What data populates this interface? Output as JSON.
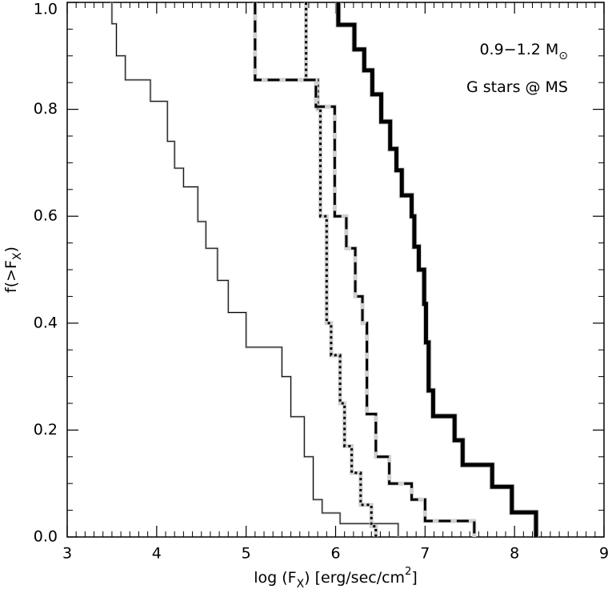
{
  "chart_data": {
    "type": "line",
    "step": true,
    "xlabel": [
      {
        "text": "log (F"
      },
      {
        "text": "X",
        "sub": true
      },
      {
        "text": ") [erg/sec/cm"
      },
      {
        "text": "2",
        "sup": true
      },
      {
        "text": "]"
      }
    ],
    "ylabel": [
      {
        "text": "f(>F"
      },
      {
        "text": "X",
        "sub": true
      },
      {
        "text": ")"
      }
    ],
    "annotations": [
      [
        {
          "text": "0.9−1.2 M"
        },
        {
          "text": "⊙",
          "sub": true
        }
      ],
      [
        {
          "text": "G stars @ MS"
        }
      ]
    ],
    "xlim": [
      3,
      9
    ],
    "ylim": [
      0,
      1
    ],
    "xticks": [
      3,
      4,
      5,
      6,
      7,
      8,
      9
    ],
    "yticks": [
      {
        "value": 0,
        "label": "0.0"
      },
      0.2,
      0.4,
      0.6,
      0.8,
      {
        "value": 1,
        "label": "1.0"
      }
    ],
    "series": [
      {
        "color": "#000000",
        "line_style": "solid",
        "line_width": 1,
        "x": [
          3.5,
          3.5,
          3.55,
          3.55,
          3.65,
          3.65,
          3.93,
          3.93,
          4.12,
          4.12,
          4.2,
          4.2,
          4.3,
          4.3,
          4.46,
          4.46,
          4.55,
          4.55,
          4.68,
          4.68,
          4.8,
          4.8,
          5.0,
          5.0,
          5.4,
          5.4,
          5.5,
          5.5,
          5.65,
          5.65,
          5.75,
          5.75,
          5.85,
          5.85,
          6.05,
          6.05,
          6.7,
          6.7
        ],
        "values": [
          1,
          0.96,
          0.96,
          0.9,
          0.9,
          0.855,
          0.855,
          0.815,
          0.815,
          0.74,
          0.74,
          0.69,
          0.69,
          0.655,
          0.655,
          0.59,
          0.59,
          0.54,
          0.54,
          0.48,
          0.48,
          0.42,
          0.42,
          0.355,
          0.355,
          0.3,
          0.3,
          0.225,
          0.225,
          0.15,
          0.15,
          0.07,
          0.07,
          0.045,
          0.045,
          0.025,
          0.025,
          0
        ]
      },
      {
        "color": "#000000",
        "line_style": "dotted",
        "line_width": 3,
        "x": [
          5.67,
          5.67,
          5.8,
          5.8,
          5.83,
          5.83,
          5.9,
          5.9,
          5.95,
          5.95,
          6.05,
          6.05,
          6.1,
          6.1,
          6.18,
          6.18,
          6.28,
          6.28,
          6.4,
          6.4,
          6.45,
          6.45
        ],
        "values": [
          1,
          0.855,
          0.855,
          0.8,
          0.8,
          0.6,
          0.6,
          0.4,
          0.4,
          0.34,
          0.34,
          0.25,
          0.25,
          0.17,
          0.17,
          0.12,
          0.12,
          0.06,
          0.06,
          0.02,
          0.02,
          0
        ]
      },
      {
        "color": "#000000",
        "line_style": "dashed",
        "line_width": 3,
        "x": [
          5.1,
          5.1,
          5.78,
          5.78,
          5.99,
          5.99,
          6.12,
          6.12,
          6.22,
          6.22,
          6.3,
          6.3,
          6.35,
          6.35,
          6.45,
          6.45,
          6.6,
          6.6,
          6.85,
          6.85,
          7.0,
          7.0,
          7.55,
          7.55
        ],
        "values": [
          1,
          0.855,
          0.855,
          0.805,
          0.805,
          0.6,
          0.6,
          0.54,
          0.54,
          0.45,
          0.45,
          0.4,
          0.4,
          0.23,
          0.23,
          0.15,
          0.15,
          0.1,
          0.1,
          0.07,
          0.07,
          0.03,
          0.03,
          0
        ]
      },
      {
        "color": "#000000",
        "line_style": "solid",
        "line_width": 5,
        "x": [
          6.03,
          6.03,
          6.21,
          6.21,
          6.32,
          6.32,
          6.41,
          6.41,
          6.51,
          6.51,
          6.61,
          6.61,
          6.68,
          6.68,
          6.74,
          6.74,
          6.85,
          6.85,
          6.88,
          6.88,
          6.93,
          6.93,
          6.99,
          6.99,
          7.01,
          7.01,
          7.04,
          7.04,
          7.09,
          7.09,
          7.33,
          7.33,
          7.42,
          7.42,
          7.75,
          7.75,
          7.97,
          7.97,
          8.24,
          8.24
        ],
        "values": [
          1,
          0.958,
          0.958,
          0.912,
          0.912,
          0.873,
          0.873,
          0.828,
          0.828,
          0.777,
          0.777,
          0.726,
          0.726,
          0.686,
          0.686,
          0.639,
          0.639,
          0.6,
          0.6,
          0.543,
          0.543,
          0.5,
          0.5,
          0.436,
          0.436,
          0.364,
          0.364,
          0.274,
          0.274,
          0.226,
          0.226,
          0.181,
          0.181,
          0.135,
          0.135,
          0.094,
          0.094,
          0.046,
          0.046,
          0
        ]
      }
    ]
  }
}
